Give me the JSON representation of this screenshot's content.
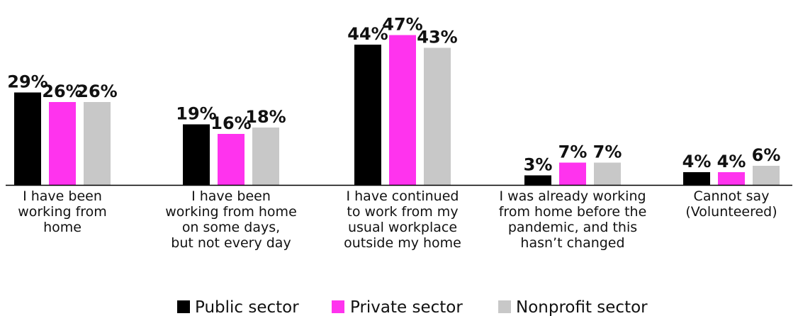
{
  "chart_data": {
    "type": "bar",
    "title": "",
    "xlabel": "",
    "ylabel": "",
    "ylim": [
      0,
      50
    ],
    "grid": false,
    "legend_position": "bottom",
    "value_suffix": "%",
    "categories": [
      [
        "I have been",
        "working from",
        "home"
      ],
      [
        "I have been",
        "working from home",
        "on some days,",
        "but not every day"
      ],
      [
        "I have continued",
        "to work from my",
        "usual workplace",
        "outside my home"
      ],
      [
        "I was already working",
        "from home before the",
        "pandemic, and this",
        "hasn’t changed"
      ],
      [
        "Cannot say",
        "(Volunteered)"
      ]
    ],
    "series": [
      {
        "name": "Public sector",
        "color": "#000000",
        "values": [
          29,
          19,
          44,
          3,
          4
        ]
      },
      {
        "name": "Private sector",
        "color": "#ff33ee",
        "values": [
          26,
          16,
          47,
          7,
          4
        ]
      },
      {
        "name": "Nonprofit sector",
        "color": "#c8c8c8",
        "values": [
          26,
          18,
          43,
          7,
          6
        ]
      }
    ]
  }
}
